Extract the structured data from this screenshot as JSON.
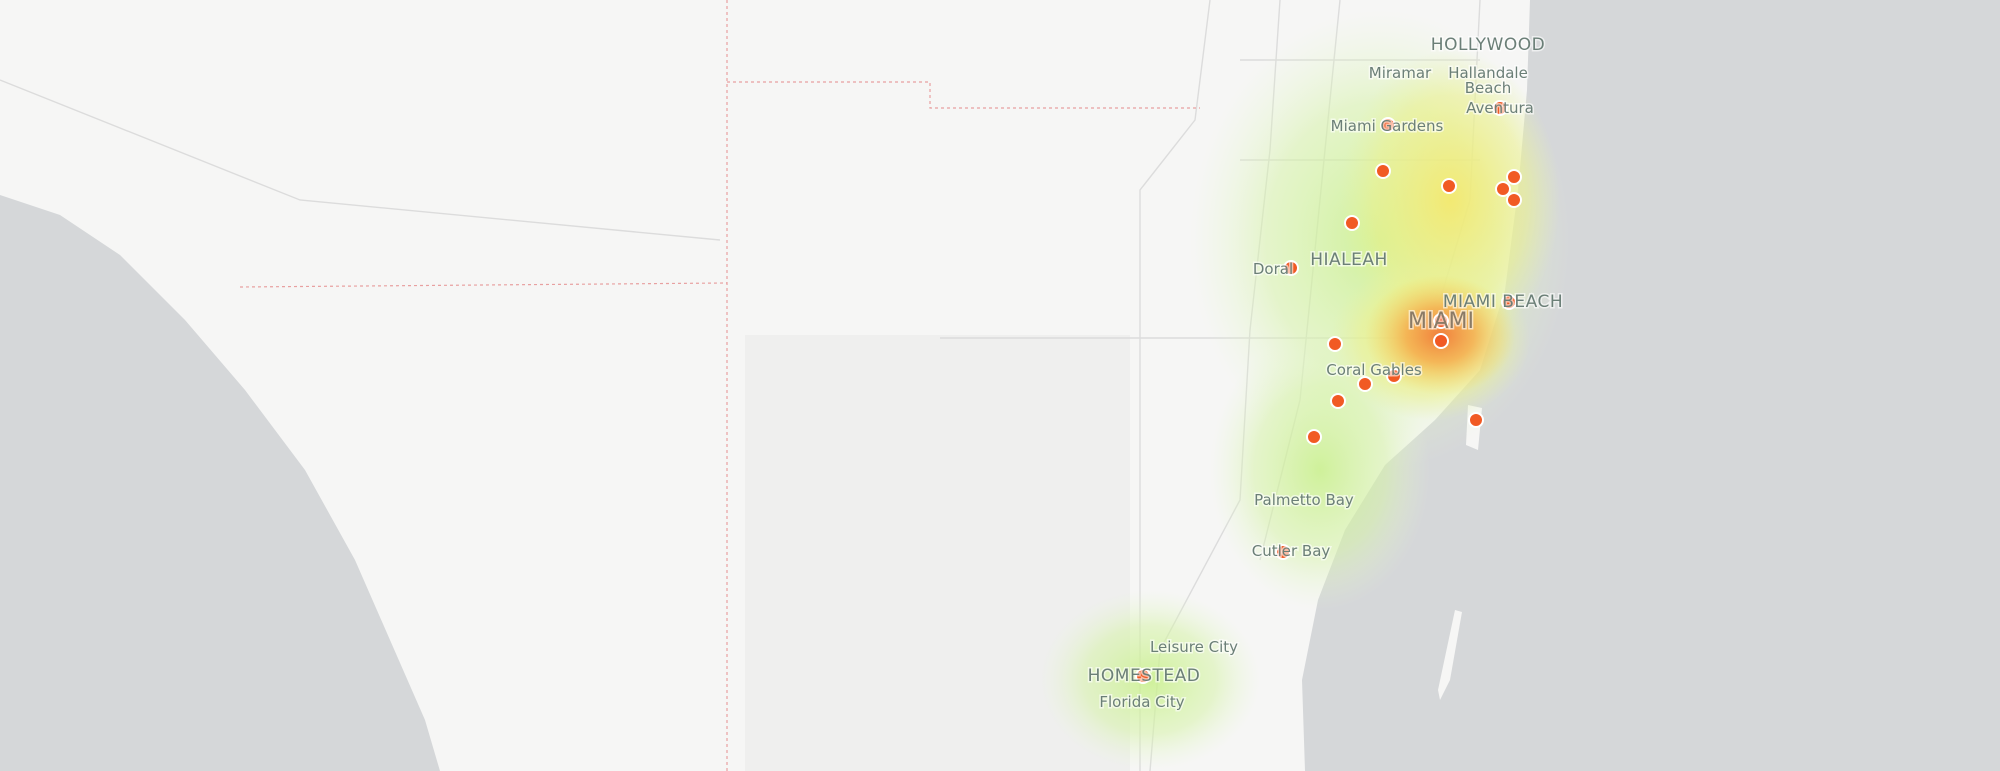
{
  "labels": [
    "HOLLYWOOD",
    "Miramar",
    "Hallandale",
    "Beach",
    "Aventura",
    "Miami Gardens",
    "Doral",
    "HIALEAH",
    "MIAMI BEACH",
    "MIAMI",
    "Coral Gables",
    "Palmetto Bay",
    "Cutler Bay",
    "Leisure City",
    "HOMESTEAD",
    "Florida City"
  ]
}
